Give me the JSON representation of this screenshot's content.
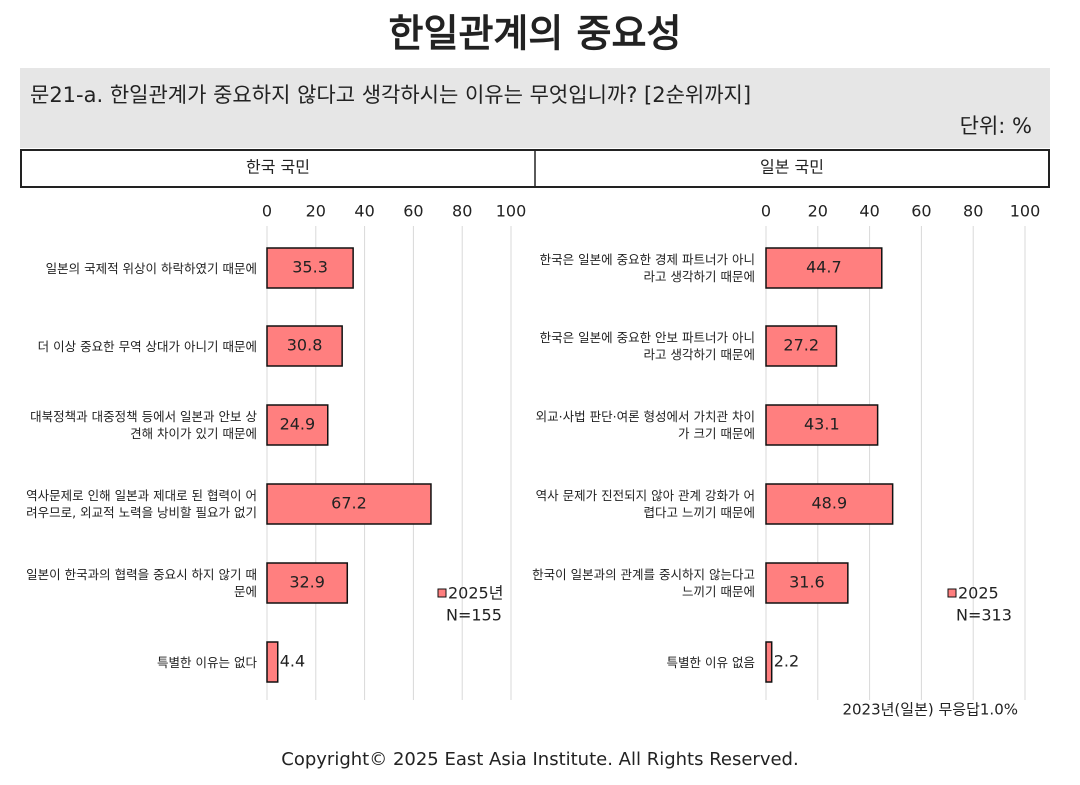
{
  "title": "한일관계의 중요성",
  "question": "문21-a. 한일관계가 중요하지 않다고 생각하시는 이유는 무엇입니까? [2순위까지]",
  "unit": "단위: %",
  "footer": "Copyright© 2025 East Asia Institute. All Rights Reserved.",
  "chart_data": [
    {
      "type": "bar",
      "orientation": "horizontal",
      "title": "한국 국민",
      "categories": [
        "일본의 국제적 위상이 하락하였기 때문에",
        "더 이상 중요한 무역 상대가 아니기 때문에",
        "대북정책과 대중정책 등에서 일본과 안보 상 견해 차이가 있기 때문에",
        "역사문제로 인해 일본과 제대로 된 협력이 어려우므로, 외교적 노력을 낭비할 필요가 없기",
        "일본이 한국과의 협력을 중요시 하지 않기 때문에",
        "특별한 이유는 없다"
      ],
      "series": [
        {
          "name": "2025년",
          "color": "#ff7f7f",
          "values": [
            35.3,
            30.8,
            24.9,
            67.2,
            32.9,
            4.4
          ]
        }
      ],
      "legend_note": "N=155",
      "xlim": [
        0,
        100
      ],
      "xticks": [
        0,
        20,
        40,
        60,
        80,
        100
      ],
      "grid": true
    },
    {
      "type": "bar",
      "orientation": "horizontal",
      "title": "일본 국민",
      "categories": [
        "한국은 일본에 중요한 경제 파트너가 아니라고 생각하기 때문에",
        "한국은 일본에 중요한 안보 파트너가 아니라고 생각하기 때문에",
        "외교·사법 판단·여론 형성에서 가치관 차이가 크기 때문에",
        "역사 문제가 진전되지 않아 관계 강화가 어렵다고 느끼기 때문에",
        "한국이 일본과의 관계를 중시하지 않는다고 느끼기 때문에",
        "특별한 이유 없음"
      ],
      "series": [
        {
          "name": "2025",
          "color": "#ff7f7f",
          "values": [
            44.7,
            27.2,
            43.1,
            48.9,
            31.6,
            2.2
          ]
        }
      ],
      "legend_note": "N=313",
      "annotation": "2023년(일본) 무응답1.0%",
      "xlim": [
        0,
        100
      ],
      "xticks": [
        0,
        20,
        40,
        60,
        80,
        100
      ],
      "grid": true
    }
  ]
}
